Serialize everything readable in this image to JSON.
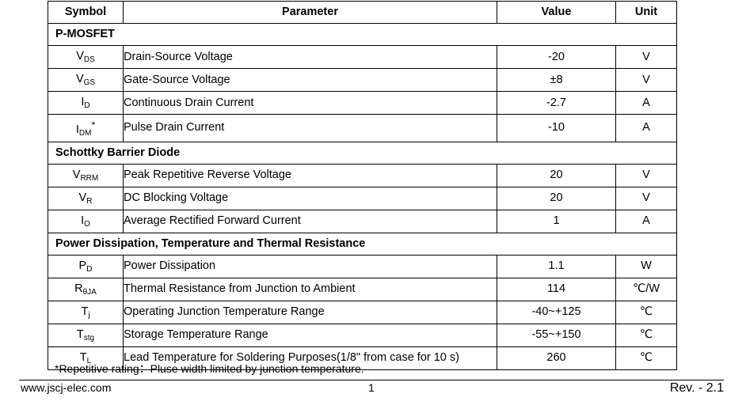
{
  "headers": {
    "symbol": "Symbol",
    "parameter": "Parameter",
    "value": "Value",
    "unit": "Unit"
  },
  "sections": {
    "mosfet": "P-MOSFET",
    "schottky": "Schottky Barrier Diode",
    "power": "Power Dissipation, Temperature and Thermal Resistance"
  },
  "rows": [
    {
      "sym": "V",
      "sub": "DS",
      "param": "Drain-Source Voltage",
      "value": "-20",
      "unit": "V"
    },
    {
      "sym": "V",
      "sub": "GS",
      "param": "Gate-Source Voltage",
      "value": "±8",
      "unit": "V"
    },
    {
      "sym": "I",
      "sub": "D",
      "param": "Continuous Drain Current",
      "value": "-2.7",
      "unit": "A"
    },
    {
      "sym": "I",
      "sub": "DM",
      "sup": "*",
      "param": "Pulse Drain Current",
      "value": "-10",
      "unit": "A"
    },
    {
      "sym": "V",
      "sub": "RRM",
      "param": "Peak Repetitive Reverse Voltage",
      "value": "20",
      "unit": "V"
    },
    {
      "sym": "V",
      "sub": "R",
      "param": "DC Blocking Voltage",
      "value": "20",
      "unit": "V"
    },
    {
      "sym": "I",
      "sub": "O",
      "param": "Average Rectified Forward Current",
      "value": "1",
      "unit": "A"
    },
    {
      "sym": "P",
      "sub": "D",
      "param": "Power Dissipation",
      "value": "1.1",
      "unit": "W"
    },
    {
      "sym": "R",
      "sub": "θJA",
      "param": "Thermal Resistance from Junction to Ambient",
      "value": "114",
      "unit": "℃/W"
    },
    {
      "sym": "T",
      "sub": "j",
      "param": "Operating Junction Temperature Range",
      "value": "-40~+125",
      "unit": "℃"
    },
    {
      "sym": "T",
      "sub": "stg",
      "param": "Storage Temperature Range",
      "value": "-55~+150",
      "unit": "℃"
    },
    {
      "sym": "T",
      "sub": "L",
      "param": "Lead Temperature for Soldering Purposes(1/8\" from case for 10 s)",
      "value": "260",
      "unit": "℃"
    }
  ],
  "note": "*Repetitive rating：Pluse width limited by junction temperature.",
  "footer": {
    "website": "www.jscj-elec.com",
    "page": "1",
    "revision": "Rev. - 2.1"
  }
}
